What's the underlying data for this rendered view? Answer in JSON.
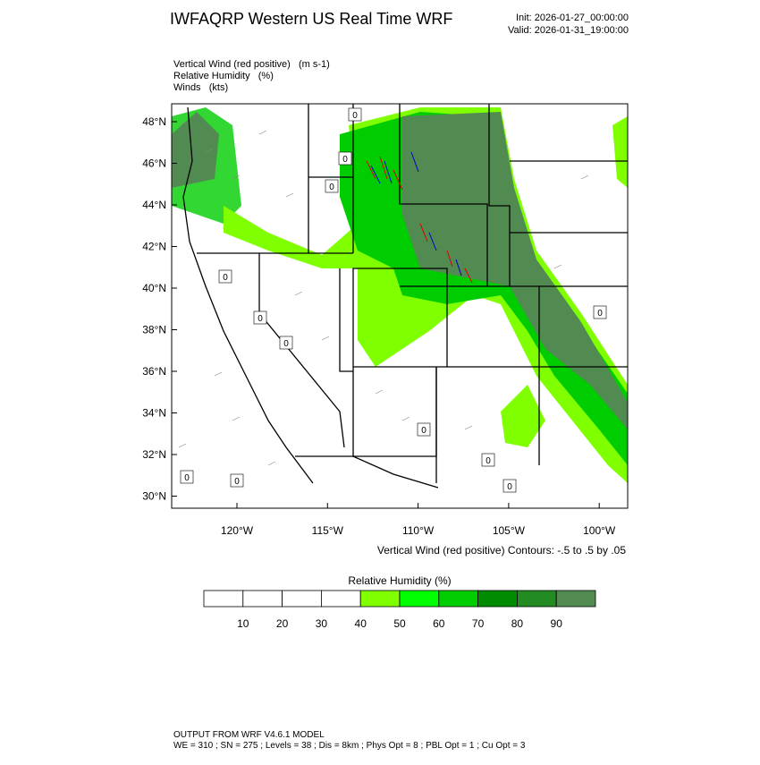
{
  "header": {
    "title": "IWFAQRP Western US Real Time WRF",
    "init": "Init: 2026-01-27_00:00:00",
    "valid": "Valid: 2026-01-31_19:00:00"
  },
  "fields": [
    "Vertical Wind (red positive)   (m s-1)",
    "Relative Humidity   (%)",
    "Winds   (kts)"
  ],
  "map": {
    "lat_labels": [
      "48°N",
      "46°N",
      "44°N",
      "42°N",
      "40°N",
      "38°N",
      "36°N",
      "34°N",
      "32°N",
      "30°N"
    ],
    "lon_labels": [
      "120°W",
      "115°W",
      "110°W",
      "105°W",
      "100°W"
    ],
    "contour_labels": [
      "0",
      "0",
      "0",
      "0",
      "0",
      "0",
      "0",
      "0",
      "0",
      "0",
      "0",
      "0"
    ],
    "contour_note": "Vertical Wind (red positive) Contours: -.5 to .5 by .05"
  },
  "colorbar": {
    "title": "Relative Humidity  (%)",
    "labels": [
      "10",
      "20",
      "30",
      "40",
      "50",
      "60",
      "70",
      "80",
      "90"
    ],
    "colors": [
      "#ffffff",
      "#ffffff",
      "#ffffff",
      "#ffffff",
      "#7fff00",
      "#00ff00",
      "#00cd00",
      "#008b00",
      "#228b22",
      "#528b52"
    ]
  },
  "footer": {
    "line1": "OUTPUT FROM WRF V4.6.1 MODEL",
    "line2": "WE = 310 ; SN = 275 ; Levels = 38 ; Dis = 8km ; Phys Opt = 8 ; PBL Opt = 1 ; Cu Opt = 3"
  }
}
